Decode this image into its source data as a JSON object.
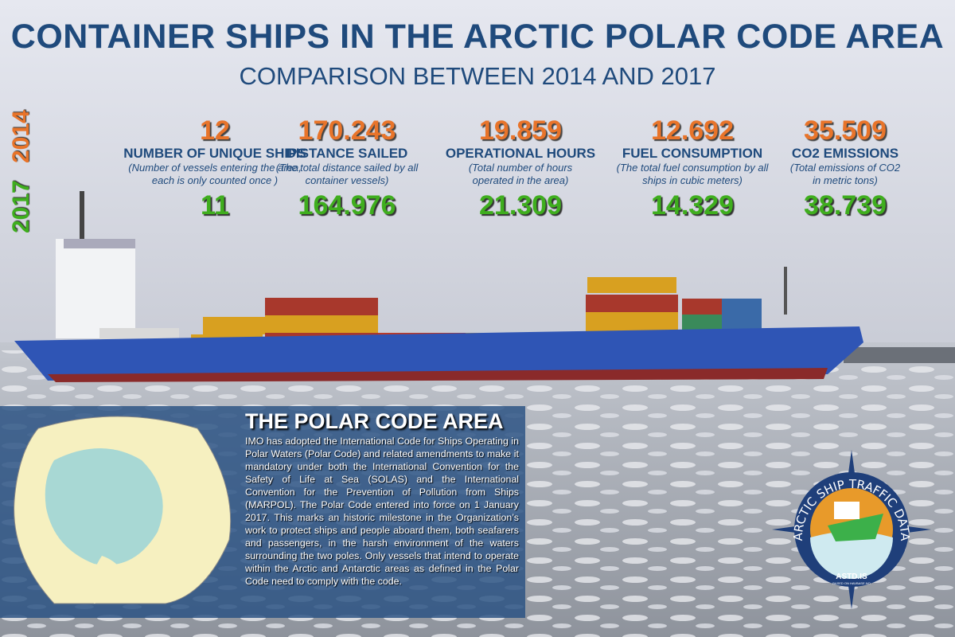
{
  "header": {
    "title": "CONTAINER SHIPS IN THE ARCTIC POLAR CODE AREA",
    "subtitle": "COMPARISON BETWEEN 2014 AND 2017"
  },
  "years": {
    "first": "2014",
    "second": "2017"
  },
  "colors": {
    "year_2014": "#e8742a",
    "year_2017": "#3fae1e",
    "heading": "#1f4a7c"
  },
  "stats": [
    {
      "label": "NUMBER OF UNIQUE SHIPS",
      "description": "(Number of vessels entering the area, each is only counted once )",
      "value_2014": "12",
      "value_2017": "11"
    },
    {
      "label": "DISTANCE SAILED",
      "description": "(The total distance sailed by all container vessels)",
      "value_2014": "170.243",
      "value_2017": "164.976"
    },
    {
      "label": "OPERATIONAL HOURS",
      "description": "(Total number of hours operated in the area)",
      "value_2014": "19.859",
      "value_2017": "21.309"
    },
    {
      "label": "FUEL CONSUMPTION",
      "description": "(The total fuel consumption by all ships in cubic meters)",
      "value_2014": "12.692",
      "value_2017": "14.329"
    },
    {
      "label": "CO2 EMISSIONS",
      "description": "(Total emissions of CO2 in metric tons)",
      "value_2014": "35.509",
      "value_2017": "38.739"
    }
  ],
  "polar_code": {
    "title": "THE POLAR CODE AREA",
    "text": "IMO has adopted the International Code for Ships Operating in Polar Waters (Polar Code) and related amendments to make it mandatory under both the International Convention for the Safety of Life at Sea (SOLAS) and the International Convention for the Prevention of Pollution from Ships (MARPOL). The Polar Code entered into force on 1 January 2017. This marks an historic milestone in the Organization’s work to protect ships and people aboard them, both seafarers and passengers, in the harsh environment of the waters surrounding the two poles. Only vessels that intend to operate within the Arctic and Antarctic areas as defined in the Polar Code need to comply with the code."
  },
  "logo": {
    "ring_text": "ARCTIC SHIP TRAFFIC DATA",
    "site": "ASTD.IS",
    "credit": "BASED ON HAVBASE.NO"
  }
}
